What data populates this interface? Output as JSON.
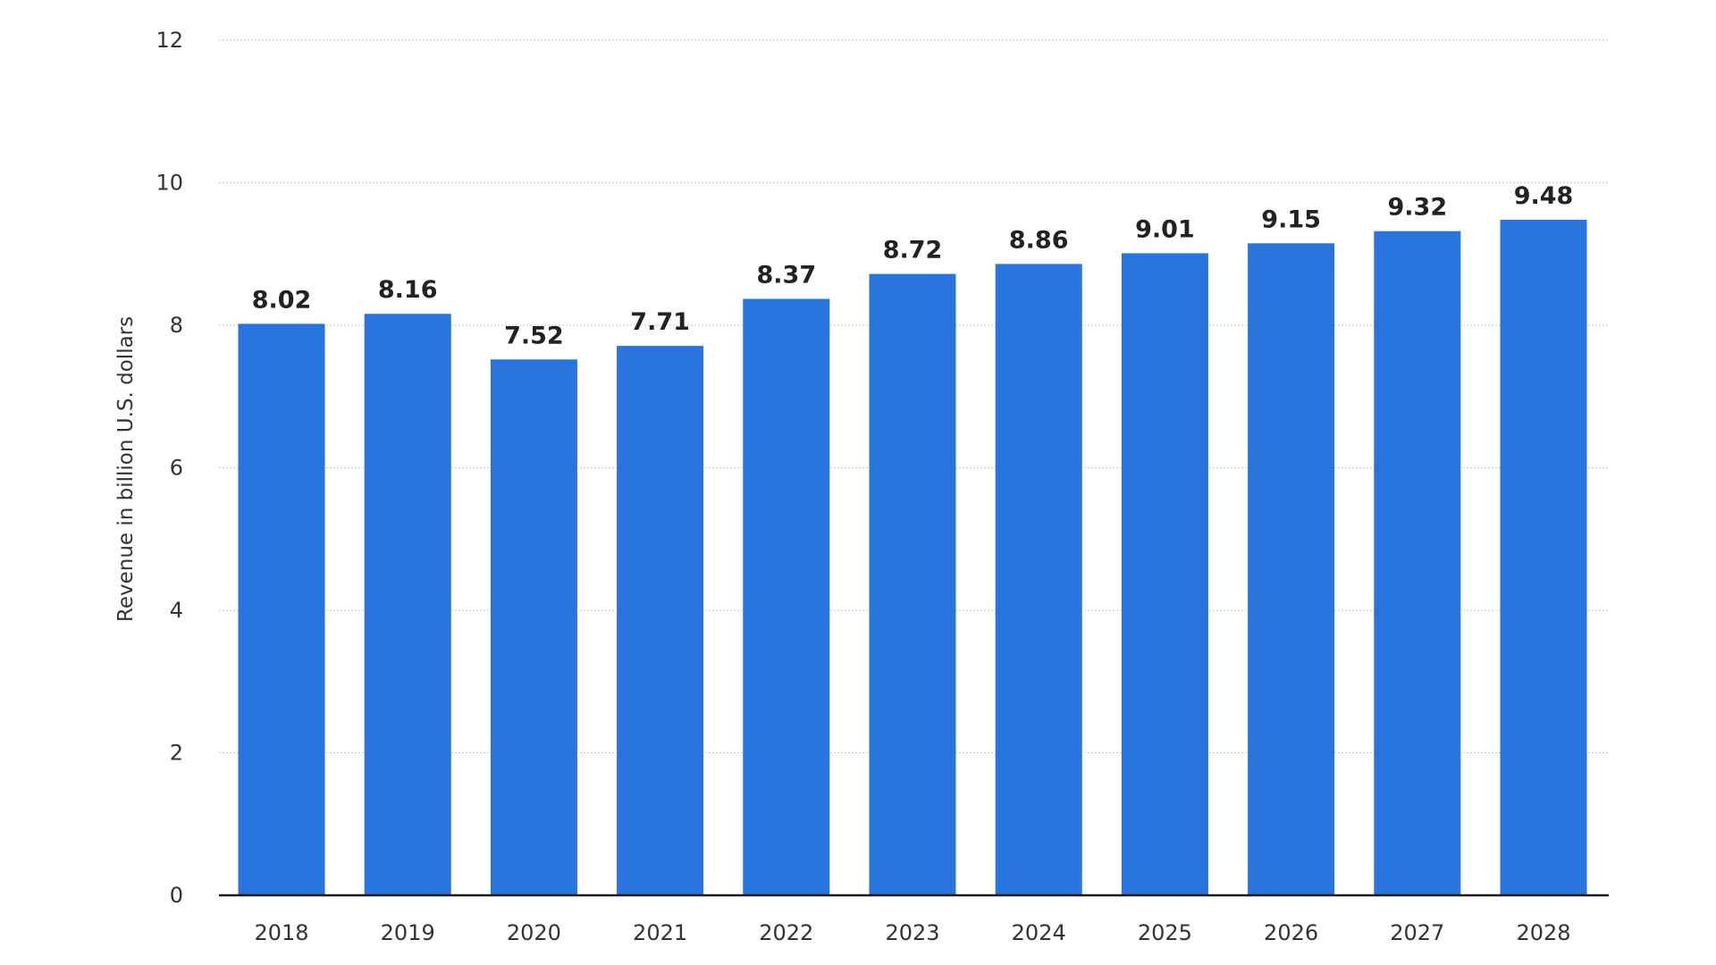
{
  "chart_data": {
    "type": "bar",
    "categories": [
      "2018",
      "2019",
      "2020",
      "2021",
      "2022",
      "2023",
      "2024",
      "2025",
      "2026",
      "2027",
      "2028"
    ],
    "values": [
      8.02,
      8.16,
      7.52,
      7.71,
      8.37,
      8.72,
      8.86,
      9.01,
      9.15,
      9.32,
      9.48
    ],
    "value_labels": [
      "8.02",
      "8.16",
      "7.52",
      "7.71",
      "8.37",
      "8.72",
      "8.86",
      "9.01",
      "9.15",
      "9.32",
      "9.48"
    ],
    "title": "",
    "xlabel": "",
    "ylabel": "Revenue in billion U.S. dollars",
    "ylim": [
      0,
      12
    ],
    "yticks": [
      0,
      2,
      4,
      6,
      8,
      10,
      12
    ],
    "grid": true,
    "legend": "none",
    "bar_color": "#2873dc"
  }
}
